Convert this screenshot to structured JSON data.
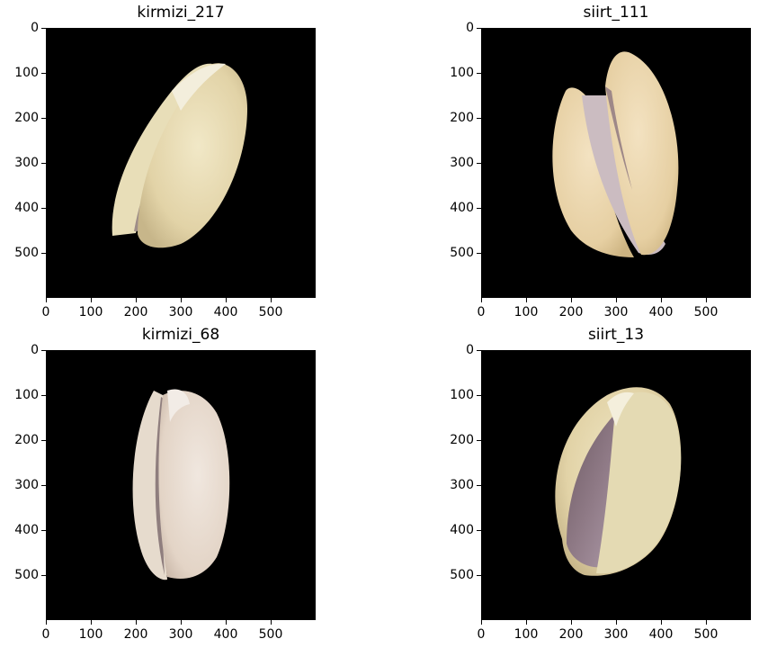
{
  "panels": [
    {
      "title": "kirmizi_217",
      "image": "pistachio-kirmizi-217"
    },
    {
      "title": "siirt_111",
      "image": "pistachio-siirt-111"
    },
    {
      "title": "kirmizi_68",
      "image": "pistachio-kirmizi-68"
    },
    {
      "title": "siirt_13",
      "image": "pistachio-siirt-13"
    }
  ],
  "axes": {
    "y_ticks": [
      "0",
      "100",
      "200",
      "300",
      "400",
      "500"
    ],
    "x_ticks": [
      "0",
      "100",
      "200",
      "300",
      "400",
      "500"
    ]
  }
}
